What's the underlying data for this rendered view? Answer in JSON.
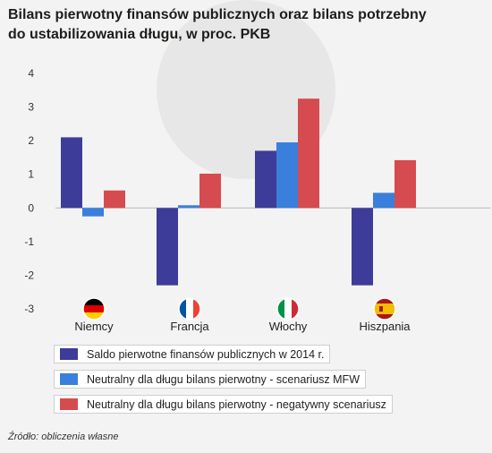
{
  "title_line1": "Bilans pierwotny finansów publicznych oraz bilans potrzebny",
  "title_line2": "do ustabilizowania długu, w proc. PKB",
  "source": "Źródło: obliczenia własne",
  "colors": {
    "series1": "#3d3c98",
    "series2": "#3a7fdc",
    "series3": "#d64b4f",
    "grid": "#ffffff",
    "zero_line": "#b8b8b8"
  },
  "countries": [
    {
      "name": "Niemcy",
      "flag": "germany-flag-icon"
    },
    {
      "name": "Francja",
      "flag": "france-flag-icon"
    },
    {
      "name": "Włochy",
      "flag": "italy-flag-icon"
    },
    {
      "name": "Hiszpania",
      "flag": "spain-flag-icon"
    }
  ],
  "legend": [
    "Saldo pierwotne finansów publicznych w 2014 r.",
    "Neutralny dla długu bilans pierwotny - scenariusz MFW",
    "Neutralny dla długu bilans pierwotny - negatywny scenariusz"
  ],
  "chart_data": {
    "type": "bar",
    "categories": [
      "Niemcy",
      "Francja",
      "Włochy",
      "Hiszpania"
    ],
    "series": [
      {
        "name": "Saldo pierwotne finansów publicznych w 2014 r.",
        "values": [
          2.1,
          -2.3,
          1.7,
          -2.3
        ]
      },
      {
        "name": "Neutralny dla długu bilans pierwotny - scenariusz MFW",
        "values": [
          -0.25,
          0.08,
          1.95,
          0.45
        ]
      },
      {
        "name": "Neutralny dla długu bilans pierwotny - negatywny scenariusz",
        "values": [
          0.52,
          1.02,
          3.25,
          1.42
        ]
      }
    ],
    "ylim": [
      -3,
      4
    ],
    "yticks": [
      "-3",
      "-2",
      "-1",
      "0",
      "1",
      "2",
      "3",
      "4"
    ],
    "grid": false,
    "legend_position": "bottom"
  }
}
